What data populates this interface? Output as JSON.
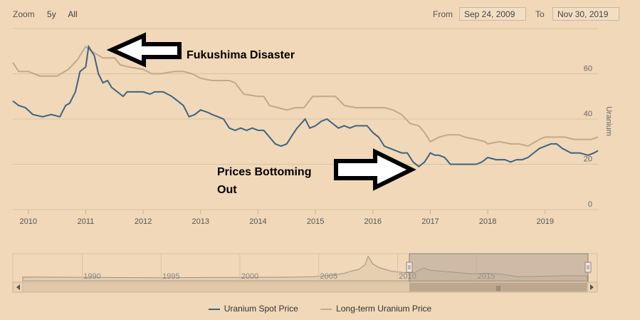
{
  "zoom": {
    "label": "Zoom",
    "buttons": [
      "5y",
      "All"
    ]
  },
  "range": {
    "from_label": "From",
    "from_value": "Sep 24, 2009",
    "to_label": "To",
    "to_value": "Nov 30, 2019"
  },
  "colors": {
    "spot": "#3c6483",
    "longterm": "#c4a88a",
    "grid": "#d9c3a4",
    "background": "#f0d8b8"
  },
  "annotations": {
    "fukushima": "Fukushima Disaster",
    "bottom_line1": "Prices Bottoming",
    "bottom_line2": "Out"
  },
  "chart_data": {
    "type": "line",
    "title": "",
    "ylabel": "Uranium",
    "ylim": [
      0,
      80
    ],
    "xlim": [
      2009.73,
      2019.92
    ],
    "y_ticks": [
      0,
      20,
      40,
      60
    ],
    "x_ticks": [
      "2010",
      "2011",
      "2012",
      "2013",
      "2014",
      "2015",
      "2016",
      "2017",
      "2018",
      "2019"
    ],
    "grid": true,
    "legend_position": "bottom-center",
    "series": [
      {
        "name": "Uranium Spot Price",
        "x": [
          2009.73,
          2009.83,
          2009.95,
          2010.08,
          2010.25,
          2010.4,
          2010.55,
          2010.65,
          2010.72,
          2010.82,
          2010.9,
          2011.0,
          2011.05,
          2011.1,
          2011.15,
          2011.22,
          2011.3,
          2011.38,
          2011.45,
          2011.55,
          2011.65,
          2011.72,
          2011.85,
          2012.0,
          2012.12,
          2012.2,
          2012.35,
          2012.5,
          2012.6,
          2012.7,
          2012.8,
          2012.9,
          2013.0,
          2013.12,
          2013.2,
          2013.3,
          2013.4,
          2013.5,
          2013.6,
          2013.7,
          2013.8,
          2013.9,
          2014.0,
          2014.1,
          2014.2,
          2014.3,
          2014.4,
          2014.5,
          2014.6,
          2014.68,
          2014.75,
          2014.82,
          2014.9,
          2015.0,
          2015.1,
          2015.2,
          2015.3,
          2015.4,
          2015.5,
          2015.6,
          2015.7,
          2015.8,
          2015.9,
          2016.0,
          2016.1,
          2016.2,
          2016.3,
          2016.4,
          2016.5,
          2016.6,
          2016.7,
          2016.8,
          2016.9,
          2017.0,
          2017.08,
          2017.15,
          2017.25,
          2017.35,
          2017.5,
          2017.7,
          2017.8,
          2017.9,
          2018.0,
          2018.15,
          2018.3,
          2018.4,
          2018.5,
          2018.6,
          2018.7,
          2018.8,
          2018.9,
          2019.0,
          2019.1,
          2019.2,
          2019.3,
          2019.45,
          2019.6,
          2019.75,
          2019.85,
          2019.92
        ],
        "values": [
          48,
          46,
          45,
          42,
          41,
          42,
          41,
          46,
          47,
          52,
          61,
          63,
          72,
          70,
          68,
          60,
          56,
          57,
          54,
          52,
          50,
          52,
          52,
          52,
          51,
          52,
          52,
          50,
          48,
          46,
          41,
          42,
          44,
          43,
          42,
          41,
          40,
          36,
          35,
          36,
          35,
          36,
          35,
          35,
          32,
          29,
          28,
          29,
          33,
          36,
          38,
          40,
          36,
          37,
          39,
          40,
          38,
          36,
          37,
          36,
          37,
          37,
          37,
          34,
          32,
          28,
          27,
          26,
          25,
          25,
          21,
          19,
          21,
          25,
          24,
          24,
          23,
          20,
          20,
          20,
          20,
          21,
          23,
          22,
          22,
          21,
          22,
          22,
          23,
          25,
          27,
          28,
          29,
          29,
          27,
          25,
          25,
          24,
          25,
          26
        ]
      },
      {
        "name": "Long-term Uranium Price",
        "x": [
          2009.73,
          2009.83,
          2010.0,
          2010.2,
          2010.5,
          2010.7,
          2010.85,
          2011.0,
          2011.1,
          2011.3,
          2011.5,
          2011.6,
          2011.75,
          2012.0,
          2012.15,
          2012.3,
          2012.55,
          2012.7,
          2012.85,
          2013.0,
          2013.2,
          2013.35,
          2013.5,
          2013.6,
          2013.75,
          2014.0,
          2014.1,
          2014.2,
          2014.35,
          2014.5,
          2014.65,
          2014.8,
          2014.95,
          2015.1,
          2015.2,
          2015.35,
          2015.5,
          2015.7,
          2015.9,
          2016.0,
          2016.2,
          2016.35,
          2016.5,
          2016.65,
          2016.8,
          2016.9,
          2017.0,
          2017.15,
          2017.3,
          2017.5,
          2017.6,
          2017.8,
          2017.95,
          2018.0,
          2018.2,
          2018.4,
          2018.55,
          2018.7,
          2018.9,
          2019.0,
          2019.2,
          2019.35,
          2019.5,
          2019.65,
          2019.8,
          2019.92
        ],
        "values": [
          65,
          61,
          61,
          59,
          59,
          62,
          66,
          72,
          70,
          67,
          67,
          64,
          63,
          62,
          60,
          60,
          61,
          61,
          60,
          58,
          57,
          57,
          57,
          56,
          51,
          50,
          50,
          46,
          45,
          44,
          45,
          45,
          50,
          50,
          50,
          50,
          46,
          45,
          45,
          45,
          45,
          44,
          42,
          38,
          37,
          34,
          30,
          32,
          33,
          33,
          32,
          31,
          30,
          29,
          30,
          29,
          29,
          28,
          31,
          32,
          32,
          32,
          31,
          31,
          31,
          32
        ]
      }
    ]
  },
  "navigator": {
    "x_ticks": [
      "1990",
      "1995",
      "2000",
      "2005",
      "2010",
      "2015"
    ],
    "xlim": [
      1985.6,
      2021.4
    ],
    "selected_range": [
      2009.73,
      2019.92
    ],
    "series": {
      "x": [
        1985.6,
        1988,
        1990,
        1992,
        1994,
        1996,
        1998,
        2000,
        2002,
        2003,
        2004,
        2005,
        2005.5,
        2006,
        2006.3,
        2006.6,
        2006.9,
        2007.1,
        2007.3,
        2007.5,
        2007.8,
        2008.2,
        2008.6,
        2009,
        2009.5,
        2010,
        2010.5,
        2011,
        2011.5,
        2012,
        2013,
        2014,
        2015,
        2016,
        2017,
        2018,
        2019,
        2020,
        2021.4
      ],
      "values": [
        20,
        19,
        18,
        17,
        16,
        17,
        18,
        18,
        19,
        20,
        22,
        28,
        33,
        40,
        48,
        55,
        60,
        72,
        85,
        130,
        90,
        70,
        60,
        50,
        46,
        42,
        45,
        68,
        55,
        52,
        45,
        38,
        40,
        35,
        22,
        23,
        25,
        27,
        26
      ]
    }
  }
}
